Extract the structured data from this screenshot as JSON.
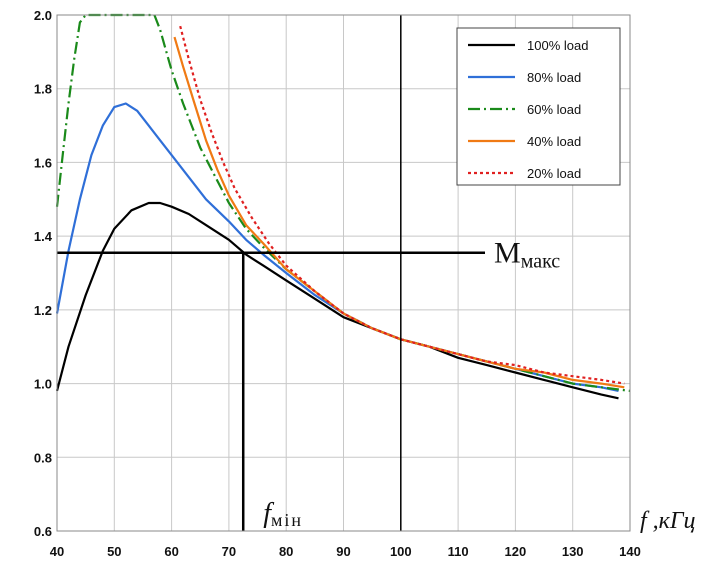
{
  "chart_data": {
    "type": "line",
    "title": "",
    "xlabel": "f ,кГц",
    "ylabel": "",
    "xlim": [
      40,
      140
    ],
    "ylim": [
      0.6,
      2.0
    ],
    "xticks": [
      40,
      50,
      60,
      70,
      80,
      90,
      100,
      110,
      120,
      130,
      140
    ],
    "yticks": [
      0.6,
      0.8,
      1.0,
      1.2,
      1.4,
      1.6,
      1.8,
      2.0
    ],
    "grid": true,
    "legend_position": "top-right",
    "series": [
      {
        "name": "100% load",
        "color": "#000000",
        "style": "solid",
        "x": [
          40,
          42,
          45,
          48,
          50,
          53,
          56,
          58,
          60,
          63,
          66,
          70,
          73,
          76,
          80,
          85,
          90,
          95,
          100,
          105,
          110,
          115,
          120,
          125,
          130,
          135,
          138
        ],
        "y": [
          0.98,
          1.1,
          1.24,
          1.36,
          1.42,
          1.47,
          1.49,
          1.49,
          1.48,
          1.46,
          1.43,
          1.39,
          1.35,
          1.32,
          1.28,
          1.23,
          1.18,
          1.15,
          1.12,
          1.1,
          1.07,
          1.05,
          1.03,
          1.01,
          0.99,
          0.97,
          0.96
        ]
      },
      {
        "name": "80% load",
        "color": "#2f6fd8",
        "style": "solid",
        "x": [
          40,
          42,
          44,
          46,
          48,
          50,
          52,
          54,
          56,
          58,
          60,
          63,
          66,
          70,
          73,
          76,
          80,
          85,
          90,
          95,
          100,
          105,
          110,
          115,
          120,
          125,
          130,
          135,
          138
        ],
        "y": [
          1.19,
          1.36,
          1.5,
          1.62,
          1.7,
          1.75,
          1.76,
          1.74,
          1.7,
          1.66,
          1.62,
          1.56,
          1.5,
          1.44,
          1.39,
          1.35,
          1.3,
          1.24,
          1.19,
          1.15,
          1.12,
          1.1,
          1.08,
          1.06,
          1.04,
          1.02,
          1.0,
          0.99,
          0.98
        ]
      },
      {
        "name": "60% load",
        "color": "#1a8a1a",
        "style": "dashdot",
        "x": [
          40,
          41,
          42,
          43,
          44,
          45,
          57,
          58,
          60,
          62,
          65,
          68,
          70,
          73,
          76,
          80,
          85,
          90,
          95,
          100,
          105,
          110,
          115,
          120,
          125,
          130,
          135,
          140
        ],
        "y": [
          1.48,
          1.62,
          1.76,
          1.88,
          1.98,
          2.0,
          2.0,
          1.96,
          1.85,
          1.76,
          1.64,
          1.55,
          1.49,
          1.42,
          1.37,
          1.31,
          1.25,
          1.19,
          1.15,
          1.12,
          1.1,
          1.08,
          1.06,
          1.04,
          1.02,
          1.0,
          0.99,
          0.98
        ]
      },
      {
        "name": "40% load",
        "color": "#f07a14",
        "style": "solid",
        "x": [
          60.5,
          62,
          64,
          66,
          68,
          70,
          73,
          76,
          80,
          85,
          90,
          95,
          100,
          105,
          110,
          115,
          120,
          125,
          130,
          135,
          139
        ],
        "y": [
          1.94,
          1.86,
          1.76,
          1.66,
          1.58,
          1.51,
          1.43,
          1.38,
          1.31,
          1.25,
          1.19,
          1.15,
          1.12,
          1.1,
          1.08,
          1.06,
          1.04,
          1.03,
          1.01,
          1.0,
          0.99
        ]
      },
      {
        "name": "20% load",
        "color": "#e02020",
        "style": "dotted",
        "x": [
          61.5,
          63,
          65,
          67,
          69,
          71,
          74,
          77,
          80,
          85,
          90,
          95,
          100,
          105,
          110,
          115,
          120,
          125,
          130,
          135,
          139
        ],
        "y": [
          1.97,
          1.88,
          1.77,
          1.68,
          1.6,
          1.53,
          1.45,
          1.38,
          1.32,
          1.25,
          1.19,
          1.15,
          1.12,
          1.1,
          1.08,
          1.06,
          1.05,
          1.03,
          1.02,
          1.01,
          1.0
        ]
      }
    ],
    "annotations": {
      "m_max": {
        "y": 1.355,
        "main": "M",
        "sub": "макс"
      },
      "f_min": {
        "x": 72.5,
        "main": "f",
        "sub": "мін"
      },
      "vline_x": 100
    }
  }
}
